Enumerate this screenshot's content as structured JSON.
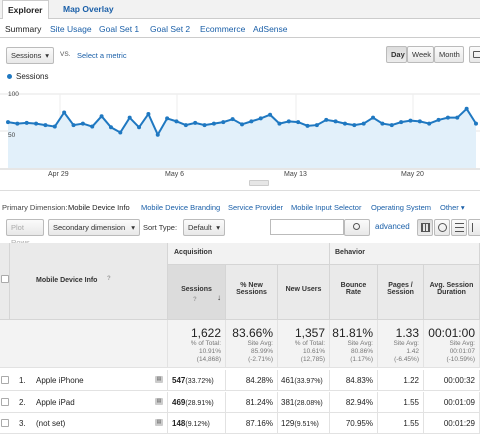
{
  "top_tabs": [
    "Explorer",
    "Map Overlay"
  ],
  "sub_tabs": [
    "Summary",
    "Site Usage",
    "Goal Set 1",
    "Goal Set 2",
    "Ecommerce",
    "AdSense"
  ],
  "metric": {
    "primary": "Sessions",
    "vs": "VS.",
    "secondary": "Select a metric"
  },
  "granularity": [
    "Day",
    "Week",
    "Month"
  ],
  "legend": "Sessions",
  "chart_data": {
    "type": "line",
    "series": [
      {
        "name": "Sessions",
        "values": [
          62,
          60,
          61,
          60,
          58,
          56,
          75,
          58,
          60,
          56,
          70,
          55,
          48,
          68,
          55,
          73,
          45,
          67,
          63,
          58,
          61,
          58,
          60,
          62,
          66,
          59,
          63,
          67,
          72,
          60,
          63,
          62,
          57,
          58,
          65,
          63,
          60,
          58,
          60,
          68,
          60,
          58,
          62,
          64,
          63,
          60,
          65,
          68,
          68,
          80,
          60
        ]
      }
    ],
    "ylim": [
      0,
      100
    ],
    "yticks": [
      "100",
      "50"
    ],
    "x_labels": [
      "Apr 29",
      "May 6",
      "May 13",
      "May 20"
    ]
  },
  "dimensions": {
    "label": "Primary Dimension:",
    "items": [
      "Mobile Device Info",
      "Mobile Device Branding",
      "Service Provider",
      "Mobile Input Selector",
      "Operating System",
      "Other"
    ]
  },
  "toolbar": {
    "plot_rows": "Plot Rows",
    "secondary": "Secondary dimension",
    "sort_label": "Sort Type:",
    "sort_value": "Default",
    "advanced": "advanced"
  },
  "table": {
    "groups": {
      "acq": "Acquisition",
      "beh": "Behavior"
    },
    "dim_header": "Mobile Device Info",
    "headers": [
      "Sessions",
      "% New Sessions",
      "New Users",
      "Bounce Rate",
      "Pages / Session",
      "Avg. Session Duration"
    ],
    "totals": [
      {
        "v": "1,622",
        "s": "% of Total: 10.91% (14,868)"
      },
      {
        "v": "83.66%",
        "s": "Site Avg: 85.99% (-2.71%)"
      },
      {
        "v": "1,357",
        "s": "% of Total: 10.61% (12,785)"
      },
      {
        "v": "81.81%",
        "s": "Site Avg: 80.86% (1.17%)"
      },
      {
        "v": "1.33",
        "s": "Site Avg: 1.42 (-6.45%)"
      },
      {
        "v": "00:01:00",
        "s": "Site Avg: 00:01:07 (-10.59%)"
      }
    ],
    "rows": [
      {
        "n": "1.",
        "name": "Apple iPhone",
        "sessions": "547",
        "sp": "(33.72%)",
        "new": "84.28%",
        "users": "461",
        "up": "(33.97%)",
        "bounce": "84.83%",
        "pages": "1.22",
        "dur": "00:00:32"
      },
      {
        "n": "2.",
        "name": "Apple iPad",
        "sessions": "469",
        "sp": "(28.91%)",
        "new": "81.24%",
        "users": "381",
        "up": "(28.08%)",
        "bounce": "82.94%",
        "pages": "1.55",
        "dur": "00:01:09"
      },
      {
        "n": "3.",
        "name": "(not set)",
        "sessions": "148",
        "sp": "(9.12%)",
        "new": "87.16%",
        "users": "129",
        "up": "(9.51%)",
        "bounce": "70.95%",
        "pages": "1.55",
        "dur": "00:01:29"
      }
    ]
  }
}
